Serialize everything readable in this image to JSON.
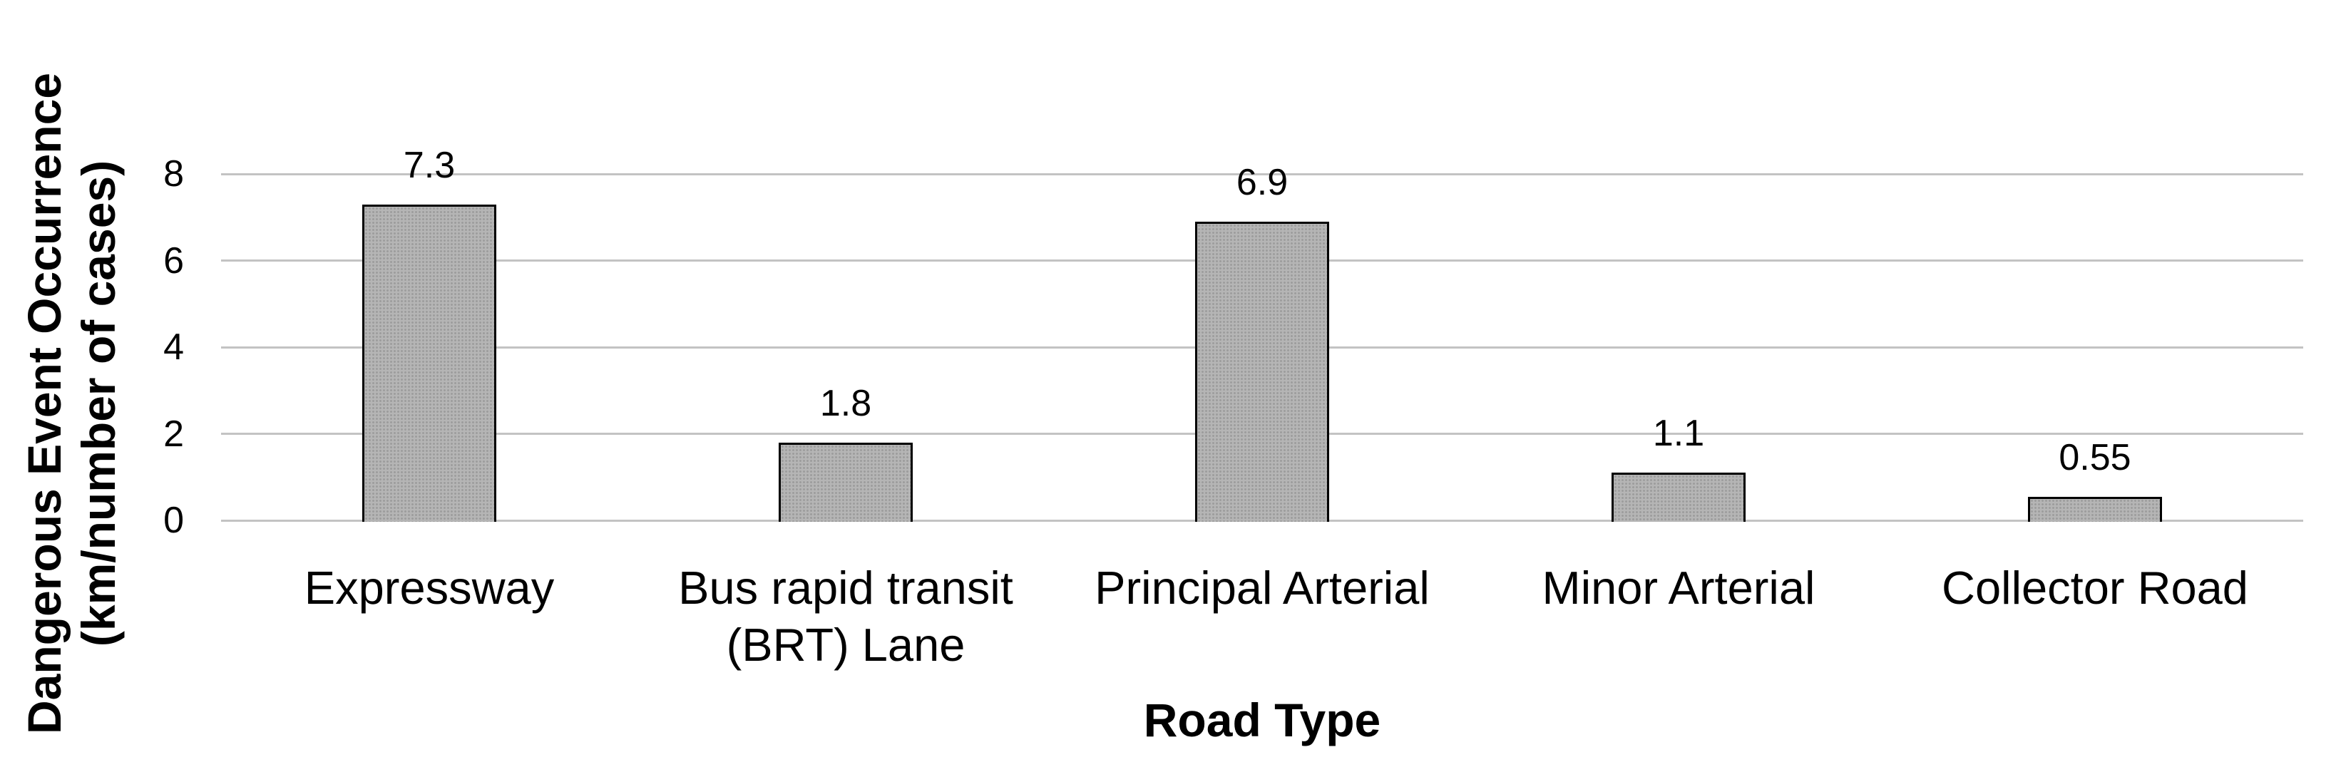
{
  "chart_data": {
    "type": "bar",
    "title": "",
    "xlabel": "Road Type",
    "ylabel": "Dangerous Event Occurrence (km/number of cases)",
    "ylabel_lines": [
      "Dangerous Event Occurrence",
      "(km/number of cases)"
    ],
    "categories": [
      "Expressway",
      "Bus rapid transit (BRT) Lane",
      "Principal Arterial",
      "Minor Arterial",
      "Collector Road"
    ],
    "values": [
      7.3,
      1.8,
      6.9,
      1.1,
      0.55
    ],
    "data_labels": [
      "7.3",
      "1.8",
      "6.9",
      "1.1",
      "0.55"
    ],
    "yticks": [
      0,
      2,
      4,
      6,
      8
    ],
    "ylim": [
      0,
      9
    ],
    "grid": "horizontal-only",
    "legend": "none",
    "colors": {
      "bar_fill": "#b5b5b5",
      "bar_pattern_dot": "#9c9c9c",
      "bar_border": "#000000",
      "gridline": "#c3c3c3",
      "text": "#000000",
      "background": "#ffffff"
    }
  }
}
